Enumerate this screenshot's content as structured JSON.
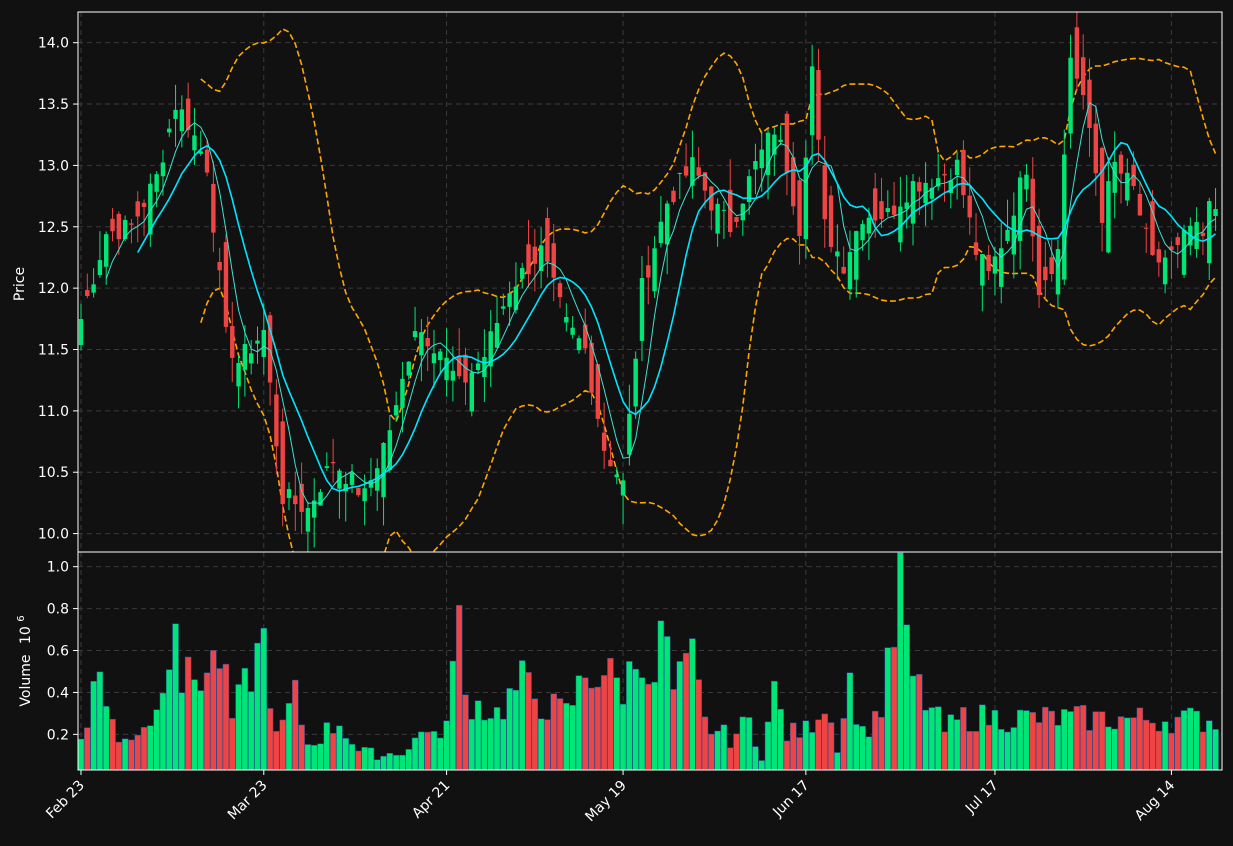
{
  "chart_data": [
    {
      "type": "candlestick",
      "title": "",
      "xlabel": "",
      "ylabel": "Price",
      "ylim": [
        9.85,
        14.25
      ],
      "yticks": [
        "10.0",
        "10.5",
        "11.0",
        "11.5",
        "12.0",
        "12.5",
        "13.0",
        "13.5",
        "14.0"
      ],
      "xticks": [
        "Feb 23",
        "Mar 23",
        "Apr 21",
        "May 19",
        "Jun 17",
        "Jul 17",
        "Aug 14"
      ],
      "grid": true,
      "x": [
        "2024-02-23",
        "2024-02-24",
        "2024-02-25",
        "2024-02-26",
        "2024-02-27",
        "2024-02-28",
        "2024-02-29",
        "2024-03-01",
        "2024-03-02",
        "2024-03-03",
        "2024-03-04",
        "2024-03-05",
        "2024-03-06",
        "2024-03-07",
        "2024-03-08",
        "2024-03-09",
        "2024-03-10",
        "2024-03-11",
        "2024-03-12",
        "2024-03-13",
        "2024-03-14",
        "2024-03-15",
        "2024-03-16",
        "2024-03-17",
        "2024-03-18",
        "2024-03-19",
        "2024-03-20",
        "2024-03-21",
        "2024-03-22",
        "2024-03-23",
        "2024-03-24",
        "2024-03-25",
        "2024-03-26",
        "2024-03-27",
        "2024-03-28",
        "2024-03-29",
        "2024-03-30",
        "2024-03-31",
        "2024-04-01",
        "2024-04-02",
        "2024-04-03",
        "2024-04-04",
        "2024-04-05",
        "2024-04-06",
        "2024-04-07",
        "2024-04-08",
        "2024-04-09",
        "2024-04-10",
        "2024-04-11",
        "2024-04-12",
        "2024-04-13",
        "2024-04-14",
        "2024-04-15",
        "2024-04-16",
        "2024-04-17",
        "2024-04-18",
        "2024-04-19",
        "2024-04-20",
        "2024-04-21",
        "2024-04-22",
        "2024-04-23",
        "2024-04-24",
        "2024-04-25",
        "2024-04-26",
        "2024-04-27",
        "2024-04-28",
        "2024-04-29",
        "2024-04-30",
        "2024-05-01",
        "2024-05-02",
        "2024-05-03",
        "2024-05-04",
        "2024-05-05",
        "2024-05-06",
        "2024-05-07",
        "2024-05-08",
        "2024-05-09",
        "2024-05-10",
        "2024-05-11",
        "2024-05-12",
        "2024-05-13",
        "2024-05-14",
        "2024-05-15",
        "2024-05-16",
        "2024-05-17",
        "2024-05-18",
        "2024-05-19",
        "2024-05-20",
        "2024-05-21",
        "2024-05-22",
        "2024-05-23",
        "2024-05-24",
        "2024-05-25",
        "2024-05-26",
        "2024-05-27",
        "2024-05-28",
        "2024-05-29",
        "2024-05-30",
        "2024-05-31",
        "2024-06-01",
        "2024-06-02",
        "2024-06-03",
        "2024-06-04",
        "2024-06-05",
        "2024-06-06",
        "2024-06-07",
        "2024-06-08",
        "2024-06-09",
        "2024-06-10",
        "2024-06-11",
        "2024-06-12",
        "2024-06-13",
        "2024-06-14",
        "2024-06-15",
        "2024-06-16",
        "2024-06-17",
        "2024-06-18",
        "2024-06-19",
        "2024-06-20",
        "2024-06-21",
        "2024-06-22",
        "2024-06-23",
        "2024-06-24",
        "2024-06-25",
        "2024-06-26",
        "2024-06-27",
        "2024-06-28",
        "2024-06-29",
        "2024-06-30",
        "2024-07-01",
        "2024-07-02",
        "2024-07-03",
        "2024-07-04",
        "2024-07-05",
        "2024-07-06",
        "2024-07-07",
        "2024-07-08",
        "2024-07-09",
        "2024-07-10",
        "2024-07-11",
        "2024-07-12",
        "2024-07-13",
        "2024-07-14",
        "2024-07-15",
        "2024-07-16",
        "2024-07-17",
        "2024-07-18",
        "2024-07-19",
        "2024-07-20",
        "2024-07-21",
        "2024-07-22",
        "2024-07-23",
        "2024-07-24",
        "2024-07-25",
        "2024-07-26",
        "2024-07-27",
        "2024-07-28",
        "2024-07-29",
        "2024-07-30",
        "2024-07-31",
        "2024-08-01",
        "2024-08-02",
        "2024-08-03",
        "2024-08-04",
        "2024-08-05",
        "2024-08-06",
        "2024-08-07",
        "2024-08-08",
        "2024-08-09",
        "2024-08-10",
        "2024-08-11",
        "2024-08-12",
        "2024-08-13",
        "2024-08-14",
        "2024-08-15",
        "2024-08-16",
        "2024-08-17",
        "2024-08-18",
        "2024-08-19",
        "2024-08-20",
        "2024-08-21"
      ],
      "anchors": [
        [
          0,
          11.75
        ],
        [
          4,
          12.45
        ],
        [
          8,
          12.5
        ],
        [
          12,
          12.9
        ],
        [
          15,
          13.5
        ],
        [
          17,
          13.35
        ],
        [
          20,
          13.0
        ],
        [
          23,
          11.6
        ],
        [
          25,
          11.4
        ],
        [
          29,
          11.65
        ],
        [
          32,
          10.3
        ],
        [
          36,
          10.2
        ],
        [
          40,
          10.6
        ],
        [
          45,
          10.3
        ],
        [
          50,
          11.0
        ],
        [
          53,
          11.7
        ],
        [
          57,
          11.5
        ],
        [
          60,
          11.2
        ],
        [
          64,
          11.45
        ],
        [
          68,
          12.0
        ],
        [
          73,
          12.3
        ],
        [
          77,
          11.7
        ],
        [
          80,
          11.5
        ],
        [
          83,
          10.7
        ],
        [
          86,
          10.4
        ],
        [
          89,
          12.0
        ],
        [
          93,
          12.7
        ],
        [
          97,
          13.0
        ],
        [
          100,
          12.7
        ],
        [
          103,
          12.5
        ],
        [
          107,
          13.0
        ],
        [
          110,
          13.3
        ],
        [
          112,
          13.0
        ],
        [
          114,
          12.5
        ],
        [
          116,
          13.8
        ],
        [
          118,
          12.5
        ],
        [
          121,
          12.2
        ],
        [
          124,
          12.6
        ],
        [
          128,
          12.6
        ],
        [
          132,
          12.85
        ],
        [
          136,
          12.9
        ],
        [
          139,
          13.0
        ],
        [
          142,
          12.3
        ],
        [
          144,
          12.1
        ],
        [
          147,
          12.5
        ],
        [
          150,
          13.0
        ],
        [
          152,
          12.0
        ],
        [
          155,
          12.3
        ],
        [
          157,
          13.9
        ],
        [
          160,
          13.3
        ],
        [
          162,
          12.6
        ],
        [
          164,
          13.0
        ],
        [
          167,
          12.8
        ],
        [
          170,
          12.2
        ],
        [
          174,
          12.3
        ],
        [
          176,
          12.5
        ],
        [
          178,
          12.4
        ],
        [
          179,
          12.65
        ]
      ],
      "volume_anchors": [
        [
          0,
          0.2
        ],
        [
          3,
          0.5
        ],
        [
          6,
          0.15
        ],
        [
          12,
          0.3
        ],
        [
          15,
          0.85
        ],
        [
          16,
          0.45
        ],
        [
          20,
          0.5
        ],
        [
          22,
          0.58
        ],
        [
          24,
          0.28
        ],
        [
          27,
          0.5
        ],
        [
          29,
          0.65
        ],
        [
          31,
          0.18
        ],
        [
          34,
          0.38
        ],
        [
          36,
          0.15
        ],
        [
          41,
          0.26
        ],
        [
          44,
          0.12
        ],
        [
          48,
          0.1
        ],
        [
          52,
          0.13
        ],
        [
          55,
          0.25
        ],
        [
          57,
          0.15
        ],
        [
          60,
          0.7
        ],
        [
          61,
          0.37
        ],
        [
          66,
          0.3
        ],
        [
          70,
          0.45
        ],
        [
          73,
          0.35
        ],
        [
          77,
          0.3
        ],
        [
          80,
          0.48
        ],
        [
          83,
          0.5
        ],
        [
          86,
          0.42
        ],
        [
          89,
          0.62
        ],
        [
          91,
          0.38
        ],
        [
          92,
          0.75
        ],
        [
          94,
          0.4
        ],
        [
          97,
          0.55
        ],
        [
          99,
          0.25
        ],
        [
          103,
          0.18
        ],
        [
          106,
          0.26
        ],
        [
          108,
          0.1
        ],
        [
          110,
          0.4
        ],
        [
          112,
          0.2
        ],
        [
          115,
          0.22
        ],
        [
          118,
          0.36
        ],
        [
          120,
          0.15
        ],
        [
          122,
          0.45
        ],
        [
          124,
          0.2
        ],
        [
          127,
          0.33
        ],
        [
          129,
          0.66
        ],
        [
          130,
          0.96
        ],
        [
          131,
          0.6
        ],
        [
          132,
          0.47
        ],
        [
          134,
          0.36
        ],
        [
          137,
          0.22
        ],
        [
          140,
          0.28
        ],
        [
          143,
          0.28
        ],
        [
          179,
          0.27
        ]
      ],
      "sma_fast_period": 5,
      "sma_slow_period": 10,
      "bollinger_period": 20,
      "bollinger_std": 2,
      "colors": {
        "up": "#00e676",
        "down": "#ef4444",
        "sma_fast": "#40e0d0",
        "sma_slow": "#00e5ff",
        "bollinger": "#ffa500",
        "background": "#111111",
        "grid": "#3a3a3a",
        "axis": "#ffffff"
      }
    },
    {
      "type": "bar",
      "title": "",
      "xlabel": "",
      "ylabel": "Volume",
      "ylabel_exponent_base": "10",
      "ylabel_exponent": "6",
      "ylim": [
        0.03,
        1.07
      ],
      "yticks": [
        "0.2",
        "0.4",
        "0.6",
        "0.8",
        "1.0"
      ],
      "grid": true
    }
  ]
}
